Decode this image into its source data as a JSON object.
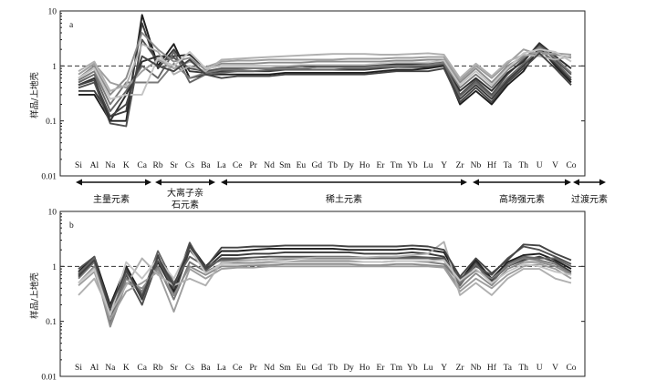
{
  "chart_data": [
    {
      "type": "line",
      "panel_label": "a",
      "y_scale": "log",
      "ylim": [
        0.01,
        10
      ],
      "ylabel": "样品/上地壳",
      "y_ticks": [
        "10",
        "1",
        "0.1",
        "0.01"
      ],
      "reference_line": 1,
      "categories": [
        "Si",
        "Al",
        "Na",
        "K",
        "Ca",
        "Rb",
        "Sr",
        "Cs",
        "Ba",
        "La",
        "Ce",
        "Pr",
        "Nd",
        "Sm",
        "Eu",
        "Gd",
        "Tb",
        "Dy",
        "Ho",
        "Er",
        "Tm",
        "Yb",
        "Lu",
        "Y",
        "Zr",
        "Nb",
        "Hf",
        "Ta",
        "Th",
        "U",
        "V",
        "Co"
      ],
      "series": [
        {
          "values": [
            0.3,
            0.3,
            0.1,
            0.1,
            8.5,
            1.0,
            2.5,
            0.6,
            0.7,
            0.7,
            0.7,
            0.7,
            0.7,
            0.75,
            0.75,
            0.75,
            0.75,
            0.75,
            0.75,
            0.8,
            0.85,
            0.85,
            0.9,
            1.0,
            0.2,
            0.35,
            0.2,
            0.45,
            0.8,
            2.2,
            1.0,
            0.5
          ],
          "color": "#1e1e1e"
        },
        {
          "values": [
            0.35,
            0.35,
            0.12,
            0.15,
            6.0,
            0.9,
            2.0,
            0.8,
            0.75,
            0.8,
            0.8,
            0.8,
            0.8,
            0.85,
            0.85,
            0.85,
            0.85,
            0.85,
            0.85,
            0.9,
            0.95,
            0.95,
            0.95,
            1.05,
            0.25,
            0.45,
            0.25,
            0.55,
            1.0,
            2.0,
            1.1,
            0.55
          ],
          "color": "#3a3a3a"
        },
        {
          "values": [
            0.4,
            0.5,
            0.09,
            0.08,
            3.0,
            1.2,
            1.4,
            0.9,
            0.8,
            0.9,
            0.9,
            0.9,
            0.9,
            0.95,
            0.9,
            0.95,
            0.95,
            0.95,
            0.95,
            1.0,
            1.05,
            1.05,
            1.1,
            1.1,
            0.3,
            0.55,
            0.3,
            0.7,
            1.3,
            2.4,
            1.3,
            0.7
          ],
          "color": "#505050"
        },
        {
          "values": [
            0.45,
            0.6,
            0.1,
            0.3,
            1.2,
            1.5,
            1.5,
            1.6,
            0.9,
            1.0,
            1.0,
            1.0,
            1.0,
            1.0,
            1.0,
            1.0,
            1.0,
            1.0,
            1.0,
            1.05,
            1.1,
            1.1,
            1.15,
            1.2,
            0.35,
            0.6,
            0.35,
            0.75,
            1.2,
            2.6,
            1.5,
            0.9
          ],
          "color": "#2e2e2e"
        },
        {
          "values": [
            0.5,
            0.7,
            0.15,
            0.35,
            1.0,
            0.6,
            1.8,
            0.5,
            0.7,
            0.75,
            0.8,
            0.8,
            0.85,
            0.85,
            0.85,
            0.85,
            0.85,
            0.9,
            0.9,
            0.95,
            0.95,
            1.0,
            1.0,
            1.1,
            0.28,
            0.5,
            0.28,
            0.6,
            1.1,
            1.9,
            1.2,
            0.6
          ],
          "color": "#656565"
        },
        {
          "values": [
            0.55,
            0.8,
            0.2,
            0.5,
            0.5,
            0.5,
            1.1,
            0.6,
            0.75,
            0.85,
            0.85,
            0.9,
            0.9,
            0.9,
            0.9,
            0.95,
            0.95,
            0.95,
            0.95,
            1.0,
            1.0,
            1.0,
            1.05,
            1.15,
            0.4,
            0.7,
            0.4,
            0.85,
            1.4,
            2.2,
            1.4,
            0.75
          ],
          "color": "#7a7a7a"
        },
        {
          "values": [
            0.6,
            1.0,
            0.3,
            0.6,
            4.0,
            2.0,
            1.2,
            1.4,
            0.85,
            1.1,
            1.1,
            1.1,
            1.15,
            1.15,
            1.15,
            1.2,
            1.2,
            1.2,
            1.2,
            1.2,
            1.25,
            1.25,
            1.3,
            1.3,
            0.5,
            0.9,
            0.5,
            1.0,
            1.5,
            1.8,
            1.6,
            1.4
          ],
          "color": "#8c8c8c"
        },
        {
          "values": [
            0.7,
            1.1,
            0.5,
            0.4,
            0.8,
            1.3,
            0.9,
            1.2,
            0.95,
            1.2,
            1.25,
            1.25,
            1.3,
            1.3,
            1.3,
            1.3,
            1.3,
            1.35,
            1.35,
            1.35,
            1.4,
            1.4,
            1.45,
            1.45,
            0.55,
            1.0,
            0.6,
            1.1,
            2.0,
            1.6,
            1.7,
            1.6
          ],
          "color": "#9e9e9e"
        },
        {
          "values": [
            0.8,
            1.2,
            0.35,
            0.45,
            2.5,
            1.8,
            0.7,
            1.0,
            0.8,
            1.3,
            1.35,
            1.4,
            1.45,
            1.5,
            1.55,
            1.6,
            1.65,
            1.65,
            1.65,
            1.6,
            1.6,
            1.65,
            1.7,
            1.6,
            0.6,
            1.1,
            0.65,
            1.2,
            1.6,
            1.5,
            1.3,
            1.5
          ],
          "color": "#b0b0b0"
        },
        {
          "values": [
            0.6,
            0.9,
            0.25,
            0.3,
            0.3,
            1.4,
            1.0,
            1.8,
            0.9,
            1.0,
            1.0,
            1.0,
            1.0,
            1.0,
            1.05,
            1.05,
            1.05,
            1.05,
            1.05,
            1.1,
            1.15,
            1.15,
            1.15,
            1.25,
            0.45,
            0.8,
            0.45,
            0.9,
            1.7,
            2.0,
            1.8,
            1.2
          ],
          "color": "#c4c4c4"
        },
        {
          "values": [
            0.45,
            0.55,
            0.12,
            0.2,
            1.5,
            1.0,
            0.8,
            1.3,
            0.7,
            0.6,
            0.65,
            0.65,
            0.65,
            0.7,
            0.7,
            0.7,
            0.7,
            0.7,
            0.7,
            0.75,
            0.8,
            0.8,
            0.8,
            0.9,
            0.22,
            0.4,
            0.22,
            0.5,
            0.9,
            1.7,
            0.9,
            0.45
          ],
          "color": "#444444"
        }
      ]
    },
    {
      "type": "line",
      "panel_label": "b",
      "y_scale": "log",
      "ylim": [
        0.01,
        10
      ],
      "ylabel": "样品/上地壳",
      "y_ticks": [
        "10",
        "1",
        "0.1",
        "0.01"
      ],
      "reference_line": 1,
      "categories": [
        "Si",
        "Al",
        "Na",
        "K",
        "Ca",
        "Rb",
        "Sr",
        "Cs",
        "Ba",
        "La",
        "Ce",
        "Pr",
        "Nd",
        "Sm",
        "Eu",
        "Gd",
        "Tb",
        "Dy",
        "Ho",
        "Er",
        "Tm",
        "Yb",
        "Lu",
        "Y",
        "Zr",
        "Nb",
        "Hf",
        "Ta",
        "Th",
        "U",
        "V",
        "Co"
      ],
      "series": [
        {
          "values": [
            0.8,
            1.5,
            0.2,
            1.0,
            0.3,
            1.2,
            0.35,
            2.5,
            1.0,
            1.9,
            1.9,
            2.0,
            2.1,
            2.1,
            2.1,
            2.1,
            2.1,
            2.0,
            2.0,
            2.0,
            2.0,
            2.1,
            2.0,
            1.8,
            0.55,
            1.3,
            0.6,
            1.2,
            1.6,
            1.7,
            1.3,
            0.9
          ],
          "color": "#1e1e1e"
        },
        {
          "values": [
            0.7,
            1.4,
            0.15,
            0.9,
            0.25,
            1.6,
            0.3,
            2.0,
            0.9,
            1.6,
            1.6,
            1.7,
            1.7,
            1.8,
            1.8,
            1.8,
            1.8,
            1.8,
            1.7,
            1.7,
            1.7,
            1.8,
            1.7,
            1.5,
            0.5,
            1.2,
            0.55,
            1.0,
            1.3,
            1.5,
            1.2,
            0.8
          ],
          "color": "#3a3a3a"
        },
        {
          "values": [
            0.9,
            1.5,
            0.12,
            0.7,
            0.2,
            1.3,
            0.4,
            2.7,
            0.85,
            1.4,
            1.4,
            1.45,
            1.5,
            1.5,
            1.5,
            1.5,
            1.5,
            1.5,
            1.45,
            1.45,
            1.5,
            1.5,
            1.45,
            1.4,
            0.6,
            1.0,
            0.7,
            1.4,
            2.3,
            2.0,
            1.5,
            1.1
          ],
          "color": "#505050"
        },
        {
          "values": [
            0.75,
            1.4,
            0.1,
            0.8,
            0.3,
            1.9,
            0.5,
            1.5,
            1.0,
            1.3,
            1.3,
            1.3,
            1.35,
            1.35,
            1.4,
            1.4,
            1.4,
            1.4,
            1.4,
            1.4,
            1.4,
            1.4,
            1.4,
            1.3,
            0.45,
            1.1,
            0.5,
            1.1,
            1.5,
            1.4,
            1.4,
            1.0
          ],
          "color": "#656565"
        },
        {
          "values": [
            0.6,
            1.2,
            0.09,
            0.6,
            0.35,
            1.0,
            0.25,
            1.2,
            0.8,
            1.1,
            1.15,
            1.15,
            1.2,
            1.2,
            1.25,
            1.25,
            1.25,
            1.25,
            1.2,
            1.2,
            1.25,
            1.25,
            1.2,
            1.1,
            0.5,
            0.85,
            0.6,
            1.0,
            1.4,
            1.3,
            1.1,
            0.75
          ],
          "color": "#7a7a7a"
        },
        {
          "values": [
            0.5,
            1.0,
            0.08,
            0.5,
            0.4,
            0.9,
            0.3,
            1.0,
            0.7,
            1.0,
            1.0,
            1.05,
            1.05,
            1.1,
            1.1,
            1.1,
            1.1,
            1.1,
            1.05,
            1.05,
            1.1,
            1.1,
            1.05,
            1.0,
            0.4,
            0.75,
            0.45,
            0.9,
            1.2,
            1.2,
            1.0,
            0.7
          ],
          "color": "#8c8c8c"
        },
        {
          "values": [
            0.45,
            0.8,
            0.11,
            0.35,
            0.5,
            0.8,
            0.15,
            0.9,
            0.6,
            0.9,
            0.95,
            0.95,
            1.0,
            1.0,
            1.0,
            1.0,
            1.0,
            1.0,
            1.0,
            1.0,
            1.0,
            1.0,
            1.0,
            0.95,
            0.35,
            0.6,
            0.4,
            0.7,
            1.0,
            1.1,
            0.9,
            0.6
          ],
          "color": "#9e9e9e"
        },
        {
          "values": [
            0.3,
            0.6,
            0.14,
            0.45,
            1.4,
            0.7,
            0.45,
            0.6,
            0.45,
            1.2,
            1.25,
            1.3,
            1.35,
            1.4,
            1.4,
            1.45,
            1.45,
            1.45,
            1.45,
            1.5,
            1.5,
            1.6,
            1.7,
            2.8,
            0.3,
            0.5,
            0.3,
            0.6,
            0.9,
            0.9,
            0.6,
            0.5
          ],
          "color": "#b0b0b0"
        },
        {
          "values": [
            0.5,
            0.9,
            0.13,
            1.2,
            0.6,
            1.4,
            0.6,
            2.2,
            0.75,
            1.1,
            1.1,
            1.1,
            1.15,
            1.2,
            1.2,
            1.2,
            1.2,
            1.2,
            1.2,
            1.2,
            1.25,
            1.25,
            1.25,
            1.3,
            0.55,
            0.9,
            0.5,
            0.8,
            1.1,
            1.0,
            0.8,
            0.7
          ],
          "color": "#c4c4c4"
        },
        {
          "values": [
            0.65,
            1.3,
            0.18,
            0.85,
            0.28,
            1.5,
            0.45,
            2.3,
            0.95,
            2.2,
            2.2,
            2.3,
            2.3,
            2.4,
            2.4,
            2.4,
            2.4,
            2.3,
            2.3,
            2.3,
            2.3,
            2.4,
            2.3,
            2.0,
            0.65,
            1.4,
            0.75,
            1.3,
            2.5,
            2.4,
            1.7,
            1.3
          ],
          "color": "#444444"
        }
      ]
    }
  ],
  "groups": [
    {
      "label": "主量元素",
      "label_line2": ""
    },
    {
      "label": "大离子亲",
      "label_line2": "石元素"
    },
    {
      "label": "稀土元素",
      "label_line2": ""
    },
    {
      "label": "高场强元素",
      "label_line2": ""
    },
    {
      "label": "过渡元素",
      "label_line2": ""
    }
  ]
}
